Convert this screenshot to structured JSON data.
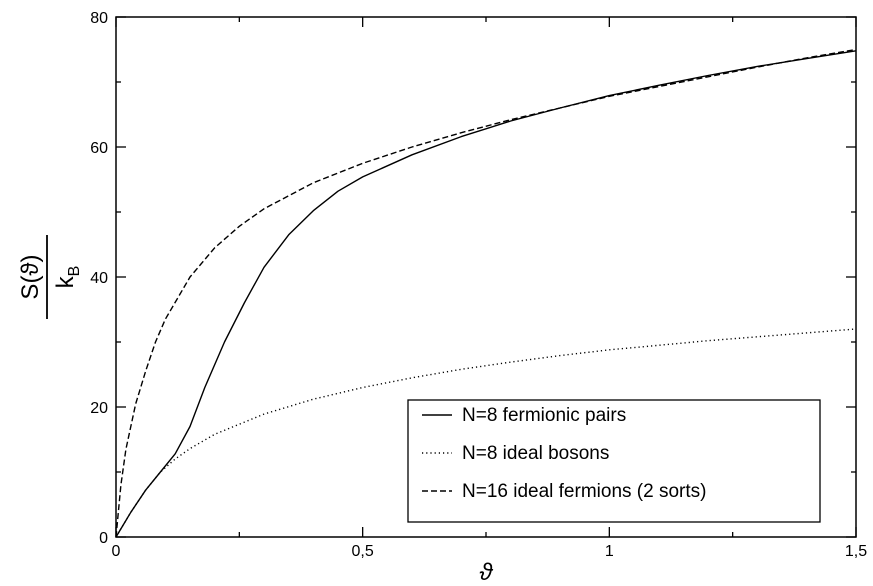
{
  "chart_data": {
    "type": "line",
    "xlabel": "ϑ",
    "ylabel": {
      "numerator": "S(ϑ)",
      "denominator_base": "k",
      "denominator_sub": "B"
    },
    "xlim": [
      0,
      1.5
    ],
    "ylim": [
      0,
      80
    ],
    "x_ticks": [
      0,
      0.5,
      1,
      1.5
    ],
    "x_tick_labels": [
      "0",
      "0,5",
      "1",
      "1,5"
    ],
    "y_ticks": [
      0,
      20,
      40,
      60,
      80
    ],
    "y_tick_labels": [
      "0",
      "20",
      "40",
      "60",
      "80"
    ],
    "grid": false,
    "legend_position": "bottom-right",
    "series": [
      {
        "name": "N=8 fermionic pairs",
        "style": "solid",
        "color": "#000000",
        "points": [
          [
            0,
            0
          ],
          [
            0.03,
            3.8
          ],
          [
            0.06,
            7.2
          ],
          [
            0.09,
            10
          ],
          [
            0.12,
            12.8
          ],
          [
            0.15,
            17
          ],
          [
            0.18,
            23
          ],
          [
            0.22,
            30
          ],
          [
            0.26,
            36
          ],
          [
            0.3,
            41.5
          ],
          [
            0.35,
            46.5
          ],
          [
            0.4,
            50.2
          ],
          [
            0.45,
            53.2
          ],
          [
            0.5,
            55.4
          ],
          [
            0.6,
            58.8
          ],
          [
            0.7,
            61.6
          ],
          [
            0.8,
            64
          ],
          [
            0.9,
            66
          ],
          [
            1.0,
            67.9
          ],
          [
            1.1,
            69.5
          ],
          [
            1.2,
            71
          ],
          [
            1.3,
            72.4
          ],
          [
            1.4,
            73.6
          ],
          [
            1.5,
            74.8
          ]
        ]
      },
      {
        "name": "N=8 ideal bosons",
        "style": "dotted",
        "color": "#000000",
        "points": [
          [
            0,
            0
          ],
          [
            0.03,
            3.8
          ],
          [
            0.06,
            7.2
          ],
          [
            0.09,
            10
          ],
          [
            0.12,
            12
          ],
          [
            0.15,
            13.6
          ],
          [
            0.2,
            15.8
          ],
          [
            0.3,
            18.9
          ],
          [
            0.4,
            21.2
          ],
          [
            0.5,
            23
          ],
          [
            0.6,
            24.5
          ],
          [
            0.7,
            25.8
          ],
          [
            0.8,
            26.9
          ],
          [
            0.9,
            27.9
          ],
          [
            1.0,
            28.8
          ],
          [
            1.1,
            29.5
          ],
          [
            1.2,
            30.2
          ],
          [
            1.3,
            30.8
          ],
          [
            1.4,
            31.4
          ],
          [
            1.5,
            32
          ]
        ]
      },
      {
        "name": "N=16 ideal fermions (2 sorts)",
        "style": "dashed",
        "color": "#000000",
        "points": [
          [
            0,
            0
          ],
          [
            0.01,
            8
          ],
          [
            0.02,
            13.5
          ],
          [
            0.04,
            20.5
          ],
          [
            0.06,
            25.5
          ],
          [
            0.08,
            30
          ],
          [
            0.1,
            33.5
          ],
          [
            0.15,
            40
          ],
          [
            0.2,
            44.5
          ],
          [
            0.25,
            47.8
          ],
          [
            0.3,
            50.5
          ],
          [
            0.4,
            54.5
          ],
          [
            0.5,
            57.5
          ],
          [
            0.6,
            60
          ],
          [
            0.7,
            62.2
          ],
          [
            0.8,
            64.2
          ],
          [
            0.9,
            66
          ],
          [
            1.0,
            67.8
          ],
          [
            1.1,
            69.3
          ],
          [
            1.2,
            70.8
          ],
          [
            1.3,
            72.3
          ],
          [
            1.4,
            73.7
          ],
          [
            1.5,
            75
          ]
        ]
      }
    ]
  }
}
